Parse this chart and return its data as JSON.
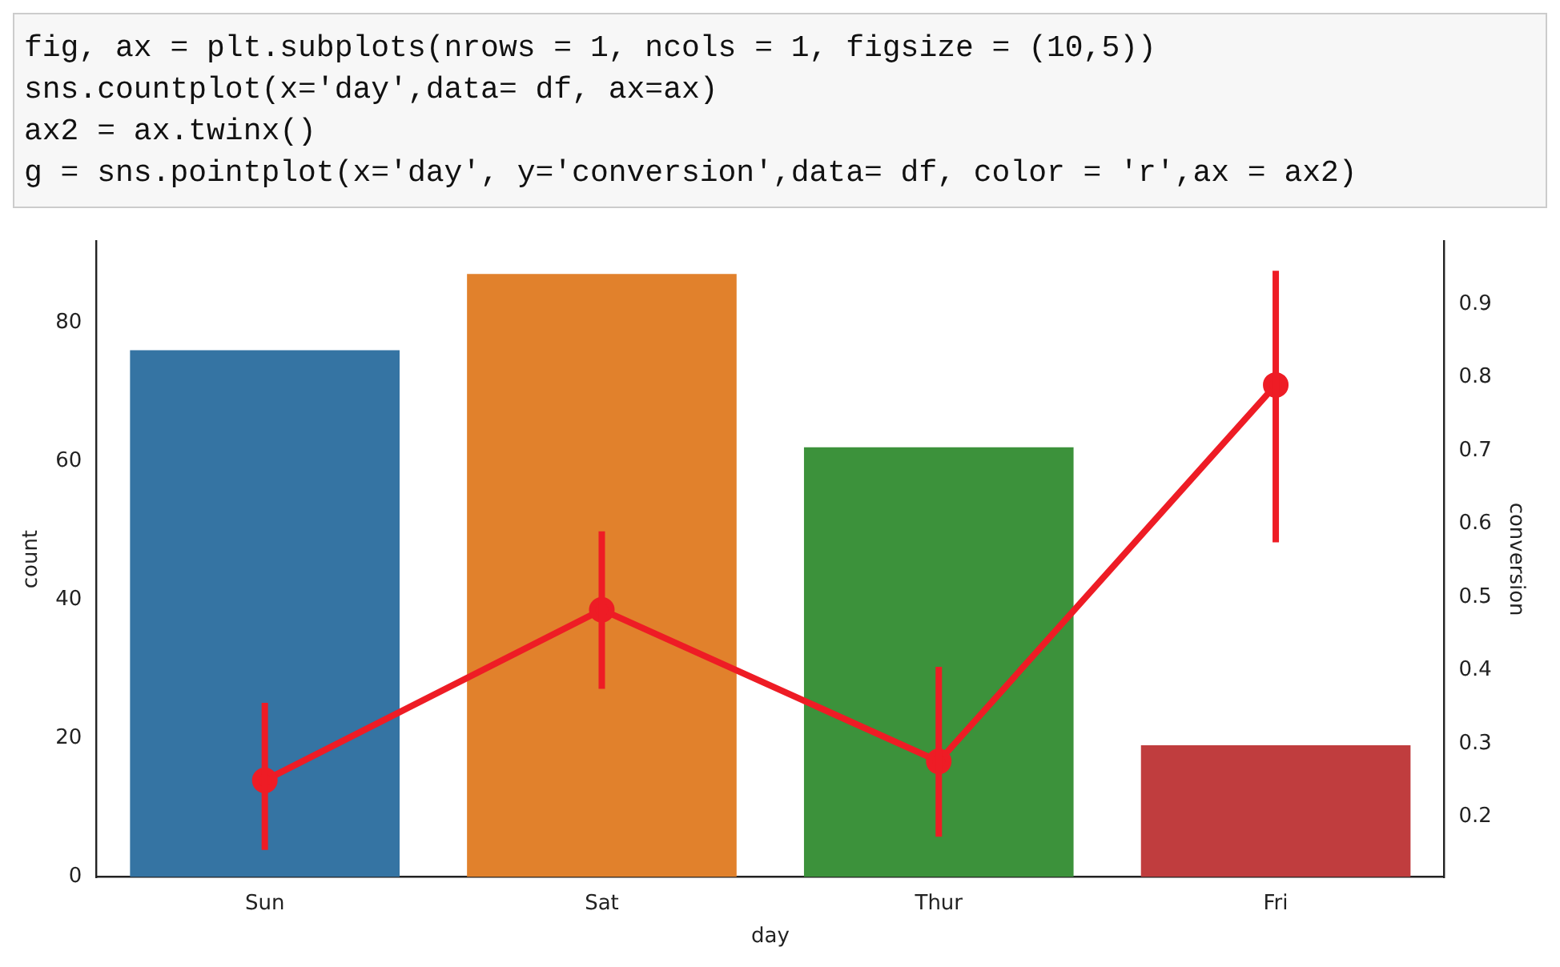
{
  "chart_data": {
    "type": "bar",
    "annotations": [
      "fig, ax = plt.subplots(nrows = 1, ncols = 1, figsize = (10,5))",
      "sns.countplot(x='day',data= df, ax=ax)",
      "ax2 = ax.twinx()",
      "g = sns.pointplot(x='day', y='conversion',data= df, color = 'r',ax = ax2)"
    ],
    "xlabel": "day",
    "ylabel": "count",
    "y2label": "conversion",
    "categories": [
      "Sun",
      "Sat",
      "Thur",
      "Fri"
    ],
    "series": [
      {
        "colors": [
          "#3574a3",
          "#e1812c",
          "#3c923b",
          "#c03d3e"
        ],
        "values": [
          76,
          87,
          62,
          19
        ]
      },
      {
        "type": "line",
        "axis": "y2",
        "color": "#ee1c25",
        "values": [
          0.25,
          0.483,
          0.276,
          0.79
        ],
        "errors": [
          [
            0.155,
            0.356
          ],
          [
            0.375,
            0.59
          ],
          [
            0.173,
            0.405
          ],
          [
            0.575,
            0.946
          ]
        ]
      }
    ],
    "marker": "circle",
    "ylim": [
      0,
      91.7
    ],
    "yticks": [
      0,
      20,
      40,
      60,
      80
    ],
    "y2lim": [
      0.118,
      0.986
    ],
    "y2ticks": [
      0.2,
      0.3,
      0.4,
      0.5,
      0.6,
      0.7,
      0.8,
      0.9
    ],
    "grid": false,
    "legend": false
  }
}
